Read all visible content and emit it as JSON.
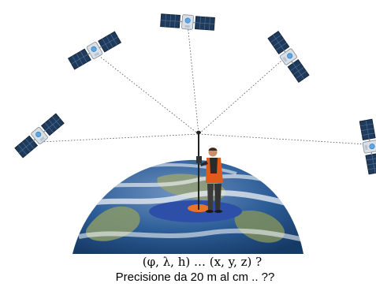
{
  "caption": {
    "coordinates": "(φ, λ, h)  … (x, y, z) ?",
    "precision": "Precisione da 20 m  al cm .. ??"
  },
  "colors": {
    "earth_ocean": "#2c5d97",
    "earth_land": "#8a9a6a",
    "cloud": "#eef2f5",
    "base_ellipse": "#2d4fa8",
    "inner_ellipse": "#e8742a",
    "solar_panel": "#1f3a5a",
    "satellite_body": "#d8dfe6",
    "signal_line": "#555555"
  },
  "icons": [
    "satellite-icon",
    "surveyor-figure",
    "gnss-pole-icon",
    "earth-globe"
  ]
}
